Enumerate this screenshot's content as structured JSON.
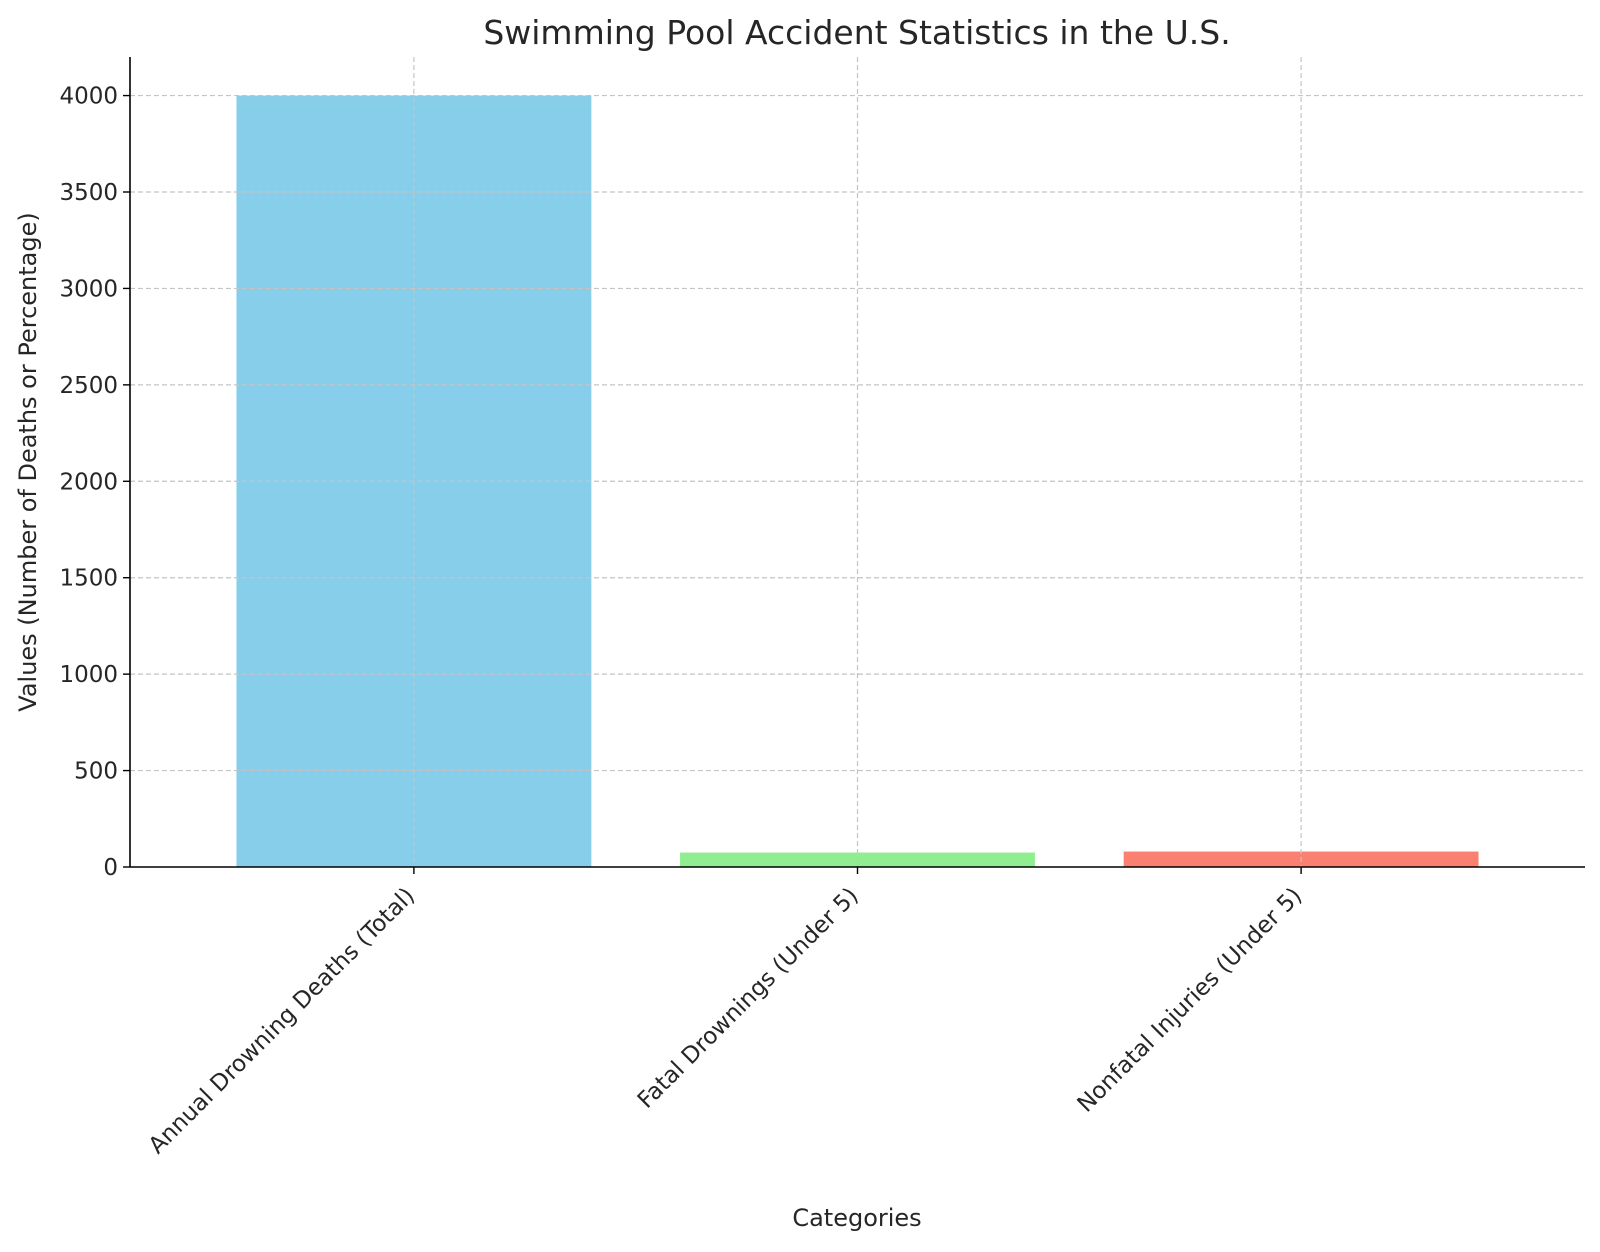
{
  "chart_data": {
    "type": "bar",
    "title": "Swimming Pool Accident Statistics in the U.S.",
    "xlabel": "Categories",
    "ylabel": "Values (Number of Deaths or Percentage)",
    "categories": [
      "Annual Drowning Deaths (Total)",
      "Fatal Drownings (Under 5)",
      "Nonfatal Injuries (Under 5)"
    ],
    "values": [
      4000,
      75,
      80
    ],
    "colors": [
      "#87ceeb",
      "#90ee90",
      "#fa8072"
    ],
    "ylim": [
      0,
      4200
    ],
    "yticks": [
      0,
      500,
      1000,
      1500,
      2000,
      2500,
      3000,
      3500,
      4000
    ],
    "grid": true,
    "legend": "none"
  }
}
